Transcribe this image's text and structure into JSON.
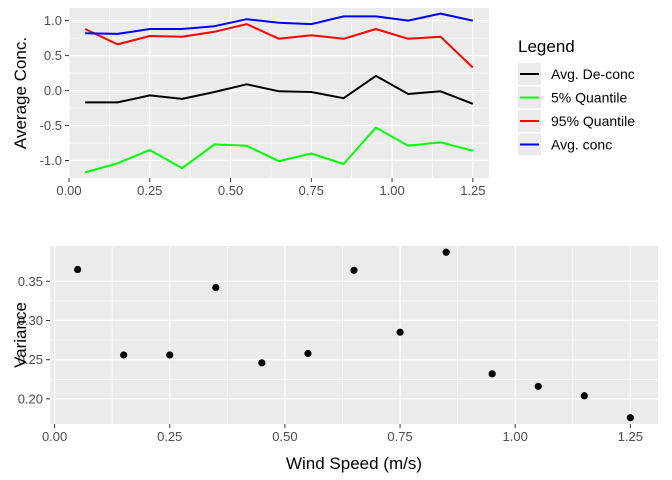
{
  "colors": {
    "panel": "#EBEBEB",
    "grid_major": "#FFFFFF",
    "avg_deconc": "#000000",
    "q05": "#00FF00",
    "q95": "#FF0000",
    "avg_conc": "#0000FF",
    "points": "#000000"
  },
  "chart_data": [
    {
      "type": "line",
      "ylabel": "Average Conc.",
      "xlabel": "",
      "xlim": [
        0.0,
        1.3
      ],
      "ylim": [
        -1.25,
        1.18
      ],
      "x_ticks": [
        "0.00",
        "0.25",
        "0.50",
        "0.75",
        "1.00",
        "1.25"
      ],
      "y_ticks": [
        "1.0",
        "0.5",
        "0.0",
        "-0.5",
        "-1.0"
      ],
      "x": [
        0.05,
        0.15,
        0.25,
        0.35,
        0.45,
        0.55,
        0.65,
        0.75,
        0.85,
        0.95,
        1.05,
        1.15,
        1.25
      ],
      "legend_title": "Legend",
      "legend_position": "right",
      "series": [
        {
          "name": "Avg. De-conc",
          "color": "#000000",
          "values": [
            -0.17,
            -0.17,
            -0.07,
            -0.12,
            -0.02,
            0.09,
            -0.01,
            -0.02,
            -0.11,
            0.21,
            -0.05,
            -0.01,
            -0.19
          ]
        },
        {
          "name": "5% Quantile",
          "color": "#00FF00",
          "values": [
            -1.17,
            -1.04,
            -0.85,
            -1.11,
            -0.77,
            -0.79,
            -1.01,
            -0.9,
            -1.05,
            -0.53,
            -0.79,
            -0.74,
            -0.86
          ]
        },
        {
          "name": "95% Quantile",
          "color": "#FF0000",
          "values": [
            0.88,
            0.66,
            0.78,
            0.77,
            0.84,
            0.95,
            0.74,
            0.79,
            0.74,
            0.88,
            0.74,
            0.77,
            0.33
          ]
        },
        {
          "name": "Avg. conc",
          "color": "#0000FF",
          "values": [
            0.82,
            0.81,
            0.88,
            0.88,
            0.92,
            1.02,
            0.97,
            0.95,
            1.06,
            1.06,
            1.0,
            1.1,
            1.0
          ]
        }
      ]
    },
    {
      "type": "scatter",
      "ylabel": "Variance",
      "xlabel": "Wind Speed (m/s)",
      "xlim": [
        -0.01,
        1.31
      ],
      "ylim": [
        0.168,
        0.395
      ],
      "x_ticks": [
        "0.00",
        "0.25",
        "0.50",
        "0.75",
        "1.00",
        "1.25"
      ],
      "y_ticks": [
        "0.35",
        "0.30",
        "0.25",
        "0.20"
      ],
      "x": [
        0.05,
        0.15,
        0.25,
        0.35,
        0.45,
        0.55,
        0.65,
        0.75,
        0.85,
        0.95,
        1.05,
        1.15,
        1.25
      ],
      "y": [
        0.365,
        0.256,
        0.256,
        0.342,
        0.246,
        0.258,
        0.364,
        0.285,
        0.387,
        0.232,
        0.216,
        0.204,
        0.176
      ]
    }
  ]
}
